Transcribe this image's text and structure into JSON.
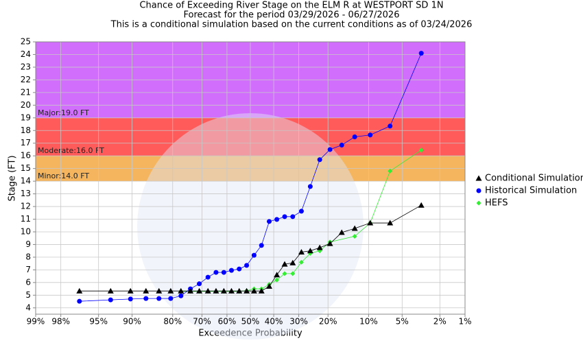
{
  "chart_data": {
    "type": "probability-line",
    "title": "Chance of Exceeding River Stage on the ELM R at WESTPORT SD 1N",
    "subtitle": "Forecast for the period 03/29/2026 - 06/27/2026",
    "note": "This is a conditional simulation based on the current conditions as of 03/24/2026",
    "x_label": "Exceedence Probability",
    "y_label": "Stage (FT)",
    "x_scale": "normal-probability",
    "xlim": [
      99,
      1
    ],
    "ylim": [
      3.5,
      25
    ],
    "xticks": [
      {
        "value": 99,
        "label": "99%"
      },
      {
        "value": 98,
        "label": "98%"
      },
      {
        "value": 95,
        "label": "95%"
      },
      {
        "value": 90,
        "label": "90%"
      },
      {
        "value": 80,
        "label": "80%"
      },
      {
        "value": 70,
        "label": "70%"
      },
      {
        "value": 60,
        "label": "60%"
      },
      {
        "value": 50,
        "label": "50%"
      },
      {
        "value": 40,
        "label": "40%"
      },
      {
        "value": 30,
        "label": "30%"
      },
      {
        "value": 20,
        "label": "20%"
      },
      {
        "value": 10,
        "label": "10%"
      },
      {
        "value": 5,
        "label": "5%"
      },
      {
        "value": 2,
        "label": "2%"
      },
      {
        "value": 1,
        "label": "1%"
      }
    ],
    "yticks": [
      4,
      5,
      6,
      7,
      8,
      9,
      10,
      11,
      12,
      13,
      14,
      15,
      16,
      17,
      18,
      19,
      20,
      21,
      22,
      23,
      24,
      25
    ],
    "grid": true,
    "legend": "right",
    "flood_stages": [
      {
        "label": "Minor:14.0 FT",
        "value": 14,
        "color": "#f5b55f"
      },
      {
        "label": "Moderate:16.0 FT",
        "value": 16,
        "color": "#ff5b5b"
      },
      {
        "label": "Major:19.0 FT",
        "value": 19,
        "color": "#d16ffc"
      }
    ],
    "series": [
      {
        "name": "Conditional Simulation",
        "color": "#000000",
        "marker": "triangle",
        "x": [
          96.8,
          93.5,
          90.3,
          87.1,
          83.9,
          80.6,
          77.4,
          74.2,
          71.0,
          67.7,
          64.5,
          61.3,
          58.1,
          54.8,
          51.6,
          48.4,
          45.2,
          41.9,
          38.7,
          35.5,
          32.3,
          29.0,
          25.8,
          22.6,
          19.4,
          16.1,
          12.9,
          9.7,
          6.5,
          3.2
        ],
        "values": [
          5.33,
          5.33,
          5.33,
          5.33,
          5.33,
          5.33,
          5.33,
          5.33,
          5.33,
          5.33,
          5.33,
          5.33,
          5.33,
          5.33,
          5.33,
          5.33,
          5.33,
          5.7,
          6.6,
          7.45,
          7.55,
          8.4,
          8.5,
          8.75,
          9.07,
          9.95,
          10.27,
          10.7,
          10.7,
          12.1
        ]
      },
      {
        "name": "Historical Simulation",
        "color": "#0000ff",
        "marker": "circle",
        "x": [
          96.8,
          93.5,
          90.3,
          87.1,
          83.9,
          80.6,
          77.4,
          74.2,
          71.0,
          67.7,
          64.5,
          61.3,
          58.1,
          54.8,
          51.6,
          48.4,
          45.2,
          41.9,
          38.7,
          35.5,
          32.3,
          29.0,
          25.8,
          22.6,
          19.4,
          16.1,
          12.9,
          9.7,
          6.5,
          3.2
        ],
        "values": [
          4.52,
          4.63,
          4.7,
          4.74,
          4.74,
          4.74,
          4.95,
          5.5,
          5.9,
          6.42,
          6.8,
          6.8,
          6.96,
          7.07,
          7.35,
          8.15,
          8.93,
          10.82,
          10.98,
          11.2,
          11.2,
          11.63,
          13.58,
          15.7,
          16.5,
          16.85,
          17.5,
          17.65,
          18.35,
          24.1
        ]
      },
      {
        "name": "HEFS",
        "color": "#33ee33",
        "marker": "diamond",
        "x": [
          77.4,
          74.2,
          71.0,
          67.7,
          64.5,
          61.3,
          58.1,
          54.8,
          51.6,
          48.4,
          45.2,
          41.9,
          38.7,
          35.5,
          32.3,
          29.0,
          25.8,
          22.6,
          19.4,
          12.9,
          9.7,
          6.5,
          3.2
        ],
        "values": [
          5.3,
          5.3,
          5.3,
          5.3,
          5.3,
          5.3,
          5.3,
          5.3,
          5.35,
          5.5,
          5.5,
          5.85,
          6.2,
          6.7,
          6.7,
          7.6,
          8.3,
          8.5,
          9.2,
          9.65,
          10.7,
          14.8,
          16.45
        ]
      }
    ]
  }
}
